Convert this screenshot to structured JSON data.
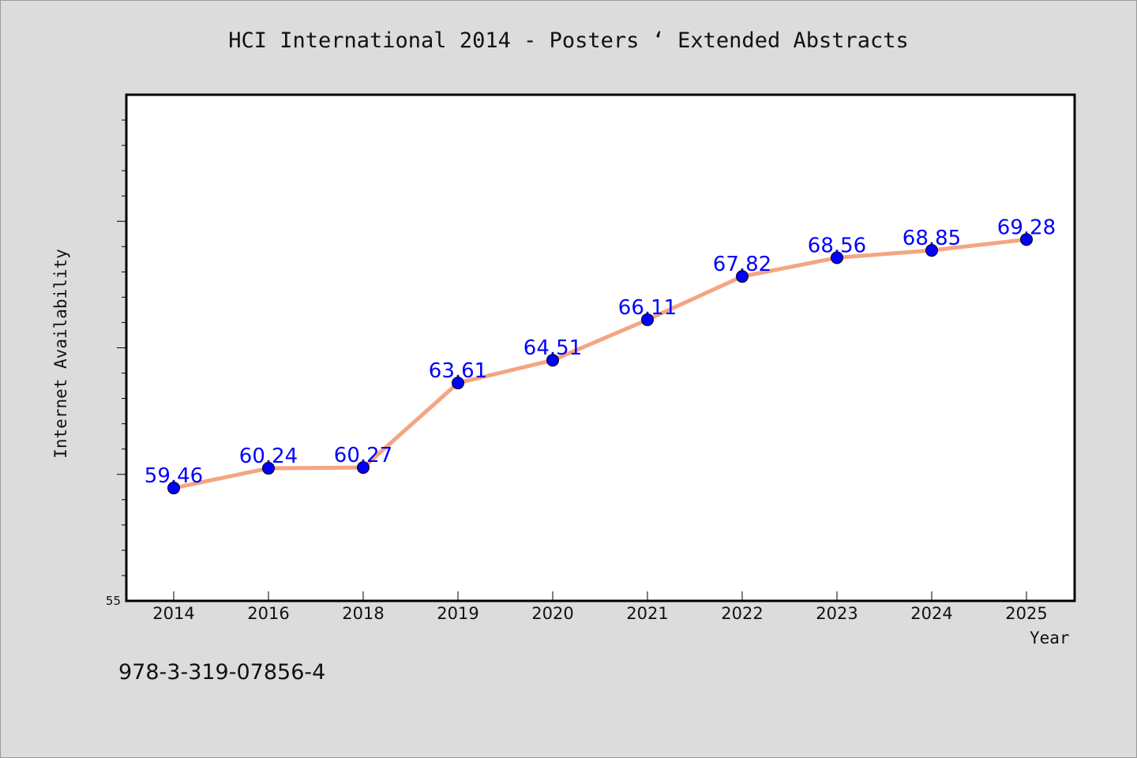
{
  "page": {
    "title": "HCI International 2014 - Posters ‘ Extended Abstracts",
    "footer_text": "978-3-319-07856-4"
  },
  "colors": {
    "background": "#dcdcdc",
    "plot_background": "#ffffff",
    "line": "#f4a582",
    "marker": "#0000ff",
    "data_label": "#0000ff"
  },
  "chart_data": {
    "type": "line",
    "title": "HCI International 2014 - Posters ‘ Extended Abstracts",
    "xlabel": "Year",
    "ylabel": "Internet Availability",
    "categories": [
      "2014",
      "2016",
      "2018",
      "2019",
      "2020",
      "2021",
      "2022",
      "2023",
      "2024",
      "2025"
    ],
    "series": [
      {
        "values": [
          59.46,
          60.24,
          60.27,
          63.61,
          64.51,
          66.11,
          67.82,
          68.56,
          68.85,
          69.28
        ],
        "labels": [
          "59.46",
          "60.24",
          "60.27",
          "63.61",
          "64.51",
          "66.11",
          "67.82",
          "68.56",
          "68.85",
          "69.28"
        ]
      }
    ],
    "ylim": [
      55,
      75
    ],
    "y_tick_labels": [
      "55"
    ],
    "grid": false,
    "legend": "none"
  }
}
